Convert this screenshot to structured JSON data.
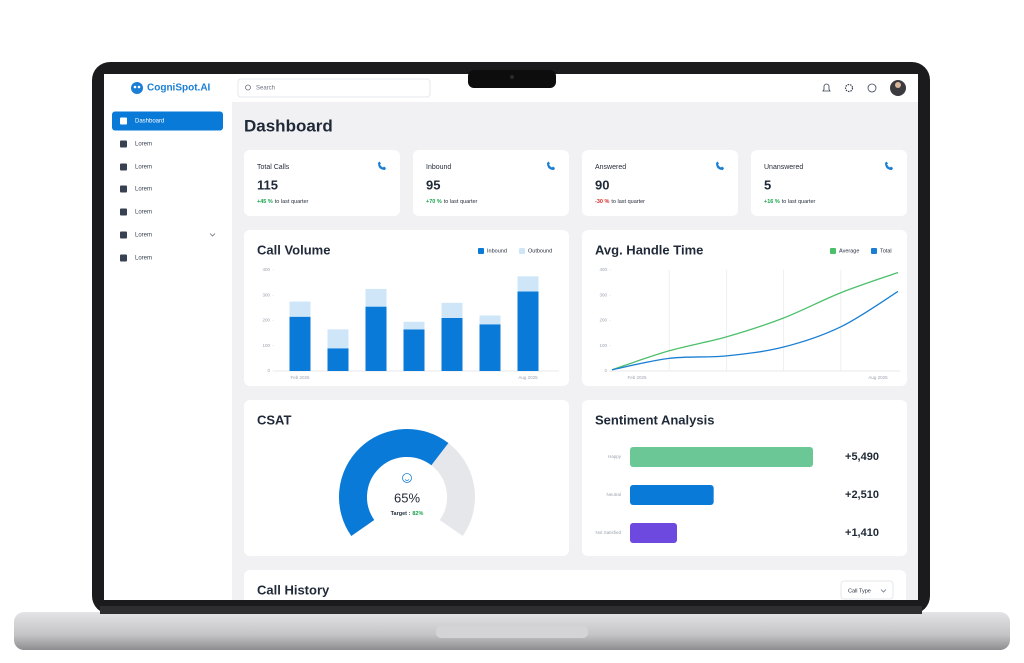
{
  "app": {
    "logo": "CogniSpot.AI",
    "search_placeholder": "Search"
  },
  "sidebar": {
    "items": [
      "Dashboard",
      "Lorem",
      "Lorem",
      "Lorem",
      "Lorem",
      "Lorem",
      "Lorem"
    ]
  },
  "page_title": "Dashboard",
  "kpis": [
    {
      "label": "Total Calls",
      "value": 115,
      "change": "+45 %",
      "change_text": "to last quarter"
    },
    {
      "label": "Inbound",
      "value": 95,
      "change": "+70 %",
      "change_text": "to last quarter"
    },
    {
      "label": "Answered",
      "value": 90,
      "change": "-30 %",
      "change_text": "to last quarter"
    },
    {
      "label": "Unanswered",
      "value": 5,
      "change": "+16 %",
      "change_text": "to last quarter"
    }
  ],
  "call_volume": {
    "type": "bar",
    "stacked": true,
    "title": "Call Volume",
    "categories": [
      "Feb 2025",
      null,
      null,
      null,
      null,
      null,
      "Aug 2025"
    ],
    "series": [
      {
        "name": "Inbound",
        "color": "#0a7ad8",
        "values": [
          215,
          90,
          255,
          165,
          210,
          185,
          315
        ]
      },
      {
        "name": "Outbound",
        "color": "#cfe6f8",
        "values": [
          60,
          75,
          70,
          30,
          60,
          35,
          60
        ]
      }
    ],
    "ylim": [
      0,
      400
    ],
    "yticks": [
      0,
      100,
      200,
      300,
      400
    ]
  },
  "handle_time": {
    "type": "line",
    "title": "Avg. Handle Time",
    "categories": [
      "Feb 2025",
      null,
      null,
      null,
      null,
      "Aug 2025"
    ],
    "series": [
      {
        "name": "Average",
        "color": "#4cbf6b",
        "values": [
          5,
          80,
          135,
          210,
          310,
          390
        ]
      },
      {
        "name": "Total",
        "color": "#1a7fd4",
        "values": [
          5,
          50,
          60,
          95,
          175,
          315
        ]
      }
    ],
    "ylim": [
      0,
      400
    ],
    "yticks": [
      0,
      100,
      200,
      300,
      400
    ]
  },
  "csat": {
    "title": "CSAT",
    "value": 65,
    "value_label": "65%",
    "target_text": "Target :",
    "target": "82%",
    "color": "#0a7ad8"
  },
  "sentiment": {
    "type": "bar",
    "orientation": "horizontal",
    "title": "Sentiment Analysis",
    "categories": [
      "Happy",
      "Neutral",
      "Not Satisfied"
    ],
    "values": [
      5490,
      2510,
      1410
    ],
    "value_labels": [
      "+5,490",
      "+2,510",
      "+1,410"
    ],
    "colors": [
      "#6cc797",
      "#0a7ad8",
      "#6e49e0"
    ],
    "xlim": [
      0,
      6000
    ]
  },
  "call_history": {
    "title": "Call History",
    "filter": "Call Type"
  }
}
